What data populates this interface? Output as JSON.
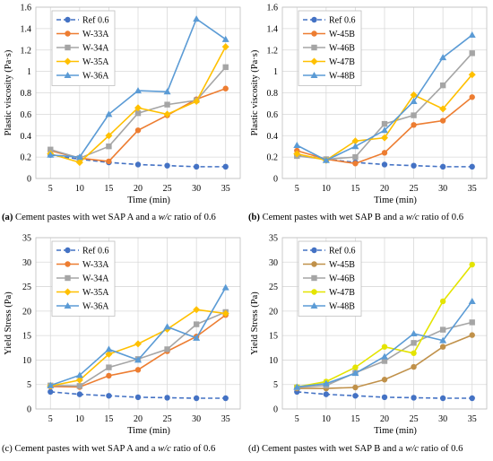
{
  "chart_data": [
    {
      "type": "line",
      "caption": {
        "tag": "(a)",
        "pre": "Cement pastes with wet SAP A and a ",
        "wc": "w/c",
        "post": " ratio of 0.6"
      },
      "xlabel": "Time (min)",
      "ylabel": "Plastic viscosity (Pa·s)",
      "x": [
        5,
        10,
        15,
        20,
        25,
        30,
        35
      ],
      "xticks": [
        "5",
        "10",
        "15",
        "20",
        "25",
        "30",
        "35"
      ],
      "ylim": [
        0,
        1.6
      ],
      "yticks": [
        "0",
        "0.2",
        "0.4",
        "0.6",
        "0.8",
        "1",
        "1.2",
        "1.4",
        "1.6"
      ],
      "grid": true,
      "legend": "top-left",
      "series": [
        {
          "name": "Ref 0.6",
          "color": "#4472C4",
          "marker": "circle",
          "dashed": true,
          "values": [
            0.22,
            0.18,
            0.15,
            0.13,
            0.12,
            0.11,
            0.11
          ]
        },
        {
          "name": "W-33A",
          "color": "#ED7D31",
          "marker": "circle",
          "dashed": false,
          "values": [
            0.26,
            0.19,
            0.16,
            0.45,
            0.59,
            0.74,
            0.84
          ]
        },
        {
          "name": "W-34A",
          "color": "#A5A5A5",
          "marker": "square",
          "dashed": false,
          "values": [
            0.27,
            0.19,
            0.3,
            0.61,
            0.69,
            0.73,
            1.04
          ]
        },
        {
          "name": "W-35A",
          "color": "#FFC000",
          "marker": "diamond",
          "dashed": false,
          "values": [
            0.23,
            0.15,
            0.4,
            0.66,
            0.6,
            0.72,
            1.23
          ]
        },
        {
          "name": "W-36A",
          "color": "#5B9BD5",
          "marker": "triangle",
          "dashed": false,
          "values": [
            0.22,
            0.2,
            0.6,
            0.82,
            0.81,
            1.49,
            1.3
          ]
        }
      ]
    },
    {
      "type": "line",
      "caption": {
        "tag": "(b)",
        "pre": "Cement pastes with wet SAP B and a ",
        "wc": "w/c",
        "post": " ratio of 0.6"
      },
      "xlabel": "Time (min)",
      "ylabel": "Plastic viscosity (Pa·s)",
      "x": [
        5,
        10,
        15,
        20,
        25,
        30,
        35
      ],
      "xticks": [
        "5",
        "10",
        "15",
        "20",
        "25",
        "30",
        "35"
      ],
      "ylim": [
        0,
        1.6
      ],
      "yticks": [
        "0",
        "0.2",
        "0.4",
        "0.6",
        "0.8",
        "1",
        "1.2",
        "1.4",
        "1.6"
      ],
      "grid": true,
      "legend": "top-left",
      "series": [
        {
          "name": "Ref 0.6",
          "color": "#4472C4",
          "marker": "circle",
          "dashed": true,
          "values": [
            0.22,
            0.18,
            0.15,
            0.13,
            0.12,
            0.11,
            0.11
          ]
        },
        {
          "name": "W-45B",
          "color": "#ED7D31",
          "marker": "circle",
          "dashed": false,
          "values": [
            0.26,
            0.18,
            0.14,
            0.24,
            0.5,
            0.54,
            0.76
          ]
        },
        {
          "name": "W-46B",
          "color": "#A5A5A5",
          "marker": "square",
          "dashed": false,
          "values": [
            0.21,
            0.18,
            0.2,
            0.51,
            0.59,
            0.87,
            1.17
          ]
        },
        {
          "name": "W-47B",
          "color": "#FFC000",
          "marker": "diamond",
          "dashed": false,
          "values": [
            0.23,
            0.17,
            0.35,
            0.38,
            0.78,
            0.65,
            0.97
          ]
        },
        {
          "name": "W-48B",
          "color": "#5B9BD5",
          "marker": "triangle",
          "dashed": false,
          "values": [
            0.31,
            0.17,
            0.3,
            0.45,
            0.72,
            1.13,
            1.34
          ]
        }
      ]
    },
    {
      "type": "line",
      "caption": {
        "tag": "(c)",
        "pre": "Cement pastes with wet SAP A and a ",
        "wc": "w/c",
        "post": " ratio of 0.6"
      },
      "xlabel": "Time (min)",
      "ylabel": "Yield Stress (Pa)",
      "x": [
        5,
        10,
        15,
        20,
        25,
        30,
        35
      ],
      "xticks": [
        "5",
        "10",
        "15",
        "20",
        "25",
        "30",
        "35"
      ],
      "ylim": [
        0,
        35
      ],
      "yticks": [
        "0",
        "5",
        "10",
        "15",
        "20",
        "25",
        "30",
        "35"
      ],
      "grid": true,
      "legend": "top-left",
      "series": [
        {
          "name": "Ref 0.6",
          "color": "#4472C4",
          "marker": "circle",
          "dashed": true,
          "values": [
            3.5,
            3.0,
            2.7,
            2.4,
            2.3,
            2.2,
            2.2
          ]
        },
        {
          "name": "W-33A",
          "color": "#ED7D31",
          "marker": "circle",
          "dashed": false,
          "values": [
            4.6,
            4.5,
            6.8,
            8.0,
            11.8,
            14.8,
            19.2
          ]
        },
        {
          "name": "W-34A",
          "color": "#A5A5A5",
          "marker": "square",
          "dashed": false,
          "values": [
            4.8,
            4.7,
            8.5,
            10.2,
            12.2,
            17.3,
            19.8
          ]
        },
        {
          "name": "W-35A",
          "color": "#FFC000",
          "marker": "diamond",
          "dashed": false,
          "values": [
            4.7,
            5.9,
            11.2,
            13.3,
            16.3,
            20.3,
            19.5
          ]
        },
        {
          "name": "W-36A",
          "color": "#5B9BD5",
          "marker": "triangle",
          "dashed": false,
          "values": [
            4.8,
            6.9,
            12.2,
            10.0,
            16.8,
            14.5,
            24.8
          ]
        }
      ]
    },
    {
      "type": "line",
      "caption": {
        "tag": "(d)",
        "pre": "Cement pastes with wet SAP B and a ",
        "wc": "w/c",
        "post": " ratio of 0.6"
      },
      "xlabel": "Time (min)",
      "ylabel": "Yield Stress (Pa)",
      "x": [
        5,
        10,
        15,
        20,
        25,
        30,
        35
      ],
      "xticks": [
        "5",
        "10",
        "15",
        "20",
        "25",
        "30",
        "35"
      ],
      "ylim": [
        0,
        35
      ],
      "yticks": [
        "0",
        "5",
        "10",
        "15",
        "20",
        "25",
        "30",
        "35"
      ],
      "grid": true,
      "legend": "top-left",
      "series": [
        {
          "name": "Ref 0.6",
          "color": "#4472C4",
          "marker": "circle",
          "dashed": true,
          "values": [
            3.5,
            3.0,
            2.7,
            2.4,
            2.3,
            2.2,
            2.2
          ]
        },
        {
          "name": "W-45B",
          "color": "#C0914A",
          "marker": "circle",
          "dashed": false,
          "values": [
            4.2,
            4.2,
            4.4,
            6.0,
            8.6,
            12.7,
            15.1
          ]
        },
        {
          "name": "W-46B",
          "color": "#A5A5A5",
          "marker": "square",
          "dashed": false,
          "values": [
            4.4,
            4.8,
            7.4,
            9.8,
            13.5,
            16.2,
            17.7
          ]
        },
        {
          "name": "W-47B",
          "color": "#E4E400",
          "marker": "circle",
          "dashed": false,
          "values": [
            4.5,
            5.6,
            8.5,
            12.7,
            11.4,
            22.0,
            29.5
          ]
        },
        {
          "name": "W-48B",
          "color": "#5B9BD5",
          "marker": "triangle",
          "dashed": false,
          "values": [
            4.5,
            5.2,
            7.3,
            10.7,
            15.4,
            14.0,
            22.0
          ]
        }
      ]
    }
  ]
}
